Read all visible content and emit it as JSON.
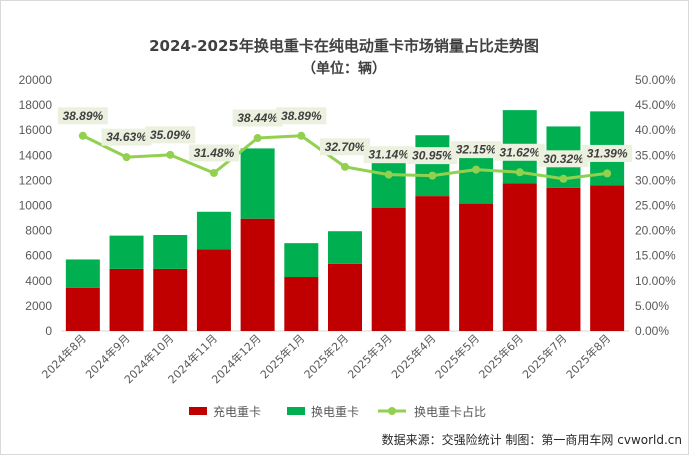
{
  "chart_data": {
    "type": "bar",
    "title": "2024-2025年换电重卡在纯电动重卡市场销量占比走势图",
    "subtitle": "（单位：辆）",
    "categories": [
      "2024年8月",
      "2024年9月",
      "2024年10月",
      "2024年11月",
      "2024年12月",
      "2025年1月",
      "2025年2月",
      "2025年3月",
      "2025年4月",
      "2025年5月",
      "2025年6月",
      "2025年7月",
      "2025年8月"
    ],
    "stacked": true,
    "series": [
      {
        "name": "充电重卡",
        "type": "bar",
        "axis": "left",
        "color": "#c00000",
        "values": [
          3450,
          4950,
          4950,
          6500,
          8950,
          4300,
          5350,
          9800,
          10750,
          10150,
          11750,
          11400,
          11600
        ]
      },
      {
        "name": "换电重卡",
        "type": "bar",
        "axis": "left",
        "color": "#00b050",
        "values": [
          2250,
          2650,
          2700,
          3000,
          5600,
          2700,
          2600,
          4450,
          4850,
          4800,
          5850,
          4900,
          5900
        ]
      },
      {
        "name": "换电重卡占比",
        "type": "line",
        "axis": "right",
        "color": "#92d050",
        "values": [
          38.89,
          34.63,
          35.09,
          31.48,
          38.44,
          38.89,
          32.7,
          31.14,
          30.95,
          32.15,
          31.62,
          30.32,
          31.39
        ],
        "labels": [
          "38.89%",
          "34.63%",
          "35.09%",
          "31.48%",
          "38.44%",
          "38.89%",
          "32.70%",
          "31.14%",
          "30.95%",
          "32.15%",
          "31.62%",
          "30.32%",
          "31.39%"
        ]
      }
    ],
    "y_left": {
      "min": 0,
      "max": 20000,
      "ticks": [
        "0",
        "2000",
        "4000",
        "6000",
        "8000",
        "10000",
        "12000",
        "14000",
        "16000",
        "18000",
        "20000"
      ]
    },
    "y_right": {
      "min": 0,
      "max": 50,
      "ticks": [
        "0.00%",
        "5.00%",
        "10.00%",
        "15.00%",
        "20.00%",
        "25.00%",
        "30.00%",
        "35.00%",
        "40.00%",
        "45.00%",
        "50.00%"
      ]
    },
    "grid": false,
    "legend_position": "bottom",
    "label_bg": "#ebf1de"
  },
  "source_note": "数据来源：交强险统计 制图：第一商用车网 cvworld.cn"
}
